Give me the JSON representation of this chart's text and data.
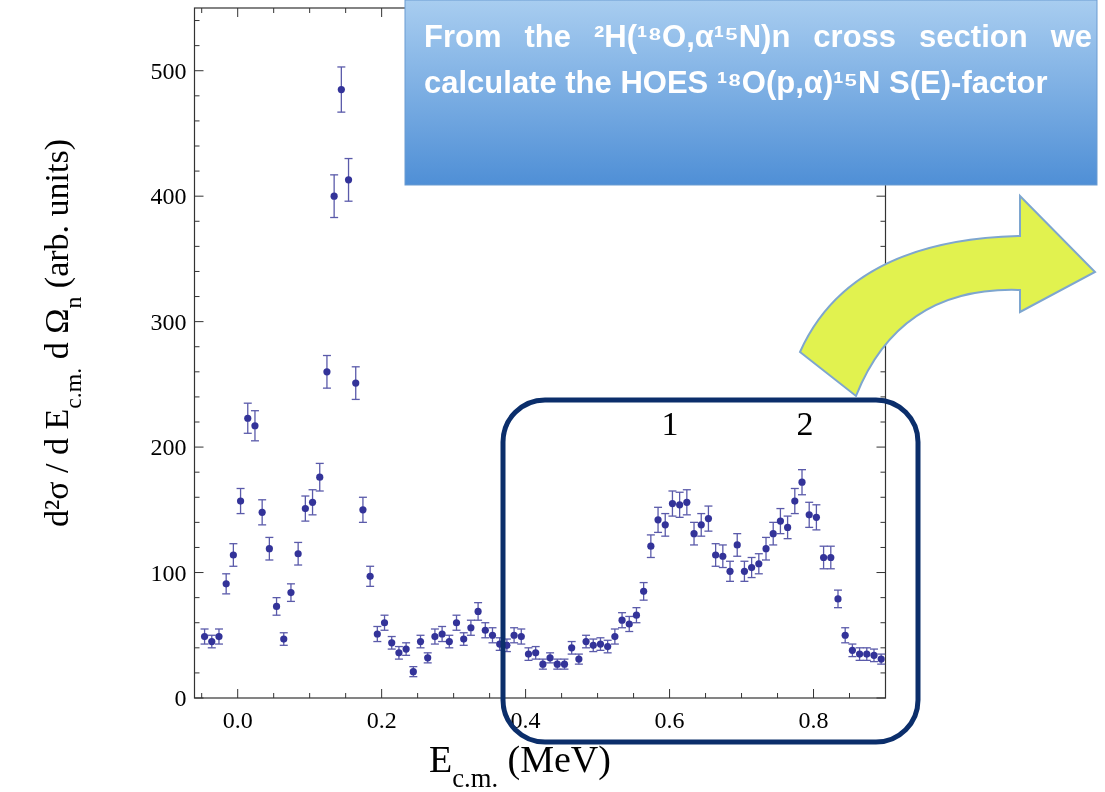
{
  "chart_data": {
    "type": "scatter",
    "xlabel": "E$_{c.m.}$ (MeV)",
    "ylabel": "d²σ / d E$_{c.m.}$ d Ω$_{n}$ (arb. units)",
    "color": "#333399",
    "marker": "circle",
    "x": [
      -0.046,
      -0.036,
      -0.026,
      -0.016,
      -0.006,
      0.004,
      0.014,
      0.024,
      0.034,
      0.044,
      0.054,
      0.064,
      0.074,
      0.084,
      0.094,
      0.104,
      0.114,
      0.124,
      0.134,
      0.144,
      0.154,
      0.164,
      0.174,
      0.184,
      0.194,
      0.204,
      0.214,
      0.224,
      0.234,
      0.244,
      0.254,
      0.264,
      0.274,
      0.284,
      0.294,
      0.304,
      0.314,
      0.324,
      0.334,
      0.344,
      0.354,
      0.364,
      0.374,
      0.384,
      0.394,
      0.404,
      0.414,
      0.424,
      0.434,
      0.444,
      0.454,
      0.464,
      0.474,
      0.484,
      0.494,
      0.504,
      0.514,
      0.524,
      0.534,
      0.544,
      0.554,
      0.564,
      0.574,
      0.584,
      0.594,
      0.604,
      0.614,
      0.624,
      0.634,
      0.644,
      0.654,
      0.664,
      0.674,
      0.684,
      0.694,
      0.704,
      0.714,
      0.724,
      0.734,
      0.744,
      0.754,
      0.764,
      0.774,
      0.784,
      0.794,
      0.804,
      0.814,
      0.824,
      0.834,
      0.844,
      0.854,
      0.864,
      0.874,
      0.884,
      0.894
    ],
    "values": [
      49,
      45,
      49,
      91,
      114,
      157,
      223,
      217,
      148,
      119,
      73,
      47,
      84,
      115,
      151,
      156,
      176,
      260,
      400,
      485,
      413,
      251,
      150,
      97,
      51,
      60,
      44,
      36,
      39,
      21,
      45,
      32,
      49,
      51,
      45,
      60,
      47,
      56,
      69,
      54,
      50,
      43,
      42,
      50,
      49,
      35,
      36,
      27,
      32,
      27,
      27,
      40,
      31,
      45,
      42,
      43,
      41,
      49,
      62,
      59,
      66,
      85,
      121,
      142,
      138,
      155,
      154,
      156,
      131,
      138,
      143,
      114,
      113,
      101,
      122,
      101,
      104,
      107,
      119,
      131,
      141,
      136,
      157,
      172,
      146,
      144,
      112,
      112,
      79,
      50,
      38,
      35,
      35,
      34,
      31
    ],
    "errors": [
      6,
      5,
      6,
      8,
      9,
      10,
      12,
      12,
      10,
      9,
      7,
      5,
      7,
      9,
      10,
      10,
      11,
      13,
      17,
      18,
      17,
      13,
      10,
      8,
      6,
      6,
      5,
      5,
      5,
      4,
      5,
      4,
      6,
      6,
      5,
      6,
      5,
      6,
      7,
      6,
      6,
      5,
      5,
      6,
      6,
      5,
      5,
      4,
      4,
      4,
      4,
      5,
      4,
      5,
      5,
      5,
      5,
      6,
      6,
      6,
      6,
      7,
      9,
      10,
      9,
      10,
      10,
      10,
      9,
      9,
      10,
      9,
      9,
      8,
      9,
      8,
      8,
      8,
      9,
      9,
      10,
      9,
      10,
      10,
      10,
      10,
      9,
      9,
      7,
      6,
      5,
      5,
      5,
      5,
      4
    ],
    "xlim": [
      -0.06,
      0.9
    ],
    "ylim": [
      0,
      550
    ],
    "xticks": [
      {
        "value": -0.05,
        "label": null
      },
      {
        "value": 0,
        "label": "0.0"
      },
      {
        "value": 0.05,
        "label": null
      },
      {
        "value": 0.1,
        "label": null
      },
      {
        "value": 0.15,
        "label": null
      },
      0.2,
      {
        "value": 0.25,
        "label": null
      },
      {
        "value": 0.3,
        "label": null
      },
      {
        "value": 0.35,
        "label": null
      },
      0.4,
      {
        "value": 0.45,
        "label": null
      },
      {
        "value": 0.5,
        "label": null
      },
      {
        "value": 0.55,
        "label": null
      },
      0.6,
      {
        "value": 0.65,
        "label": null
      },
      {
        "value": 0.7,
        "label": null
      },
      {
        "value": 0.75,
        "label": null
      },
      0.8,
      {
        "value": 0.85,
        "label": null
      }
    ],
    "yticks": [
      0,
      {
        "value": 20,
        "label": null
      },
      {
        "value": 40,
        "label": null
      },
      {
        "value": 60,
        "label": null
      },
      {
        "value": 80,
        "label": null
      },
      100,
      {
        "value": 120,
        "label": null
      },
      {
        "value": 140,
        "label": null
      },
      {
        "value": 160,
        "label": null
      },
      {
        "value": 180,
        "label": null
      },
      200,
      {
        "value": 220,
        "label": null
      },
      {
        "value": 240,
        "label": null
      },
      {
        "value": 260,
        "label": null
      },
      {
        "value": 280,
        "label": null
      },
      300,
      {
        "value": 320,
        "label": null
      },
      {
        "value": 340,
        "label": null
      },
      {
        "value": 360,
        "label": null
      },
      {
        "value": 380,
        "label": null
      },
      400,
      {
        "value": 420,
        "label": null
      },
      {
        "value": 440,
        "label": null
      },
      {
        "value": 460,
        "label": null
      },
      {
        "value": 480,
        "label": null
      },
      500,
      {
        "value": 520,
        "label": null
      },
      {
        "value": 540,
        "label": null
      }
    ],
    "annotations": [
      "1",
      "2",
      "From the ²H(¹⁸O,α¹⁵N)n cross section we calculate the HOES ¹⁸O(p,α)¹⁵N S(E)-factor"
    ]
  }
}
